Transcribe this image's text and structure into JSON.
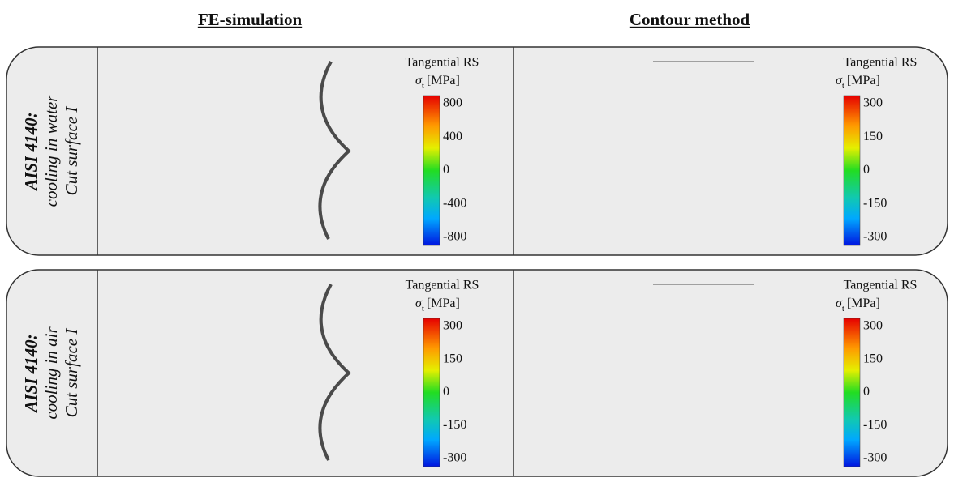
{
  "columns": [
    "FE-simulation",
    "Contour method"
  ],
  "rows": [
    {
      "material": "AISI 4140:",
      "condition": "cooling in water",
      "surface": "Cut surface I",
      "panels": [
        {
          "legend_title": "Tangential RS",
          "symbol": "σ",
          "subscript": "t",
          "unit": "[MPa]",
          "ticks": [
            800,
            400,
            0,
            -400,
            -800
          ]
        },
        {
          "legend_title": "Tangential RS",
          "symbol": "σ",
          "subscript": "t",
          "unit": "[MPa]",
          "ticks": [
            300,
            150,
            0,
            -150,
            -300
          ]
        }
      ]
    },
    {
      "material": "AISI 4140:",
      "condition": "cooling in air",
      "surface": "Cut surface I",
      "panels": [
        {
          "legend_title": "Tangential RS",
          "symbol": "σ",
          "subscript": "t",
          "unit": "[MPa]",
          "ticks": [
            300,
            150,
            0,
            -150,
            -300
          ]
        },
        {
          "legend_title": "Tangential RS",
          "symbol": "σ",
          "subscript": "t",
          "unit": "[MPa]",
          "ticks": [
            300,
            150,
            0,
            -150,
            -300
          ]
        }
      ]
    }
  ]
}
